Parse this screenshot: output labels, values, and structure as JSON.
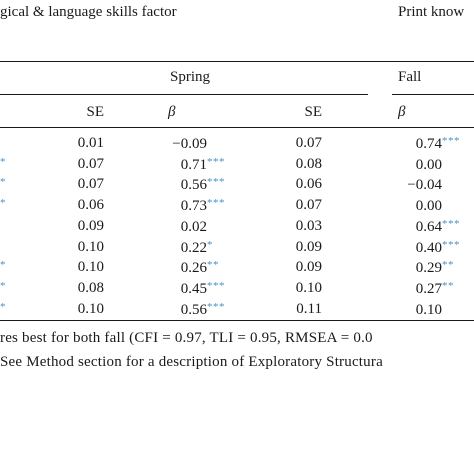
{
  "header": {
    "left_title": "gical & language skills factor",
    "right_title": "Print know"
  },
  "groups": {
    "spring": "Spring",
    "fall": "Fall"
  },
  "columns": {
    "se1": "SE",
    "beta_spring": "β",
    "se2": "SE",
    "beta_fall": "β"
  },
  "rows": [
    {
      "star0": "",
      "se1": "0.01",
      "spring_beta": "−0.09",
      "spring_star": "",
      "se2": "0.07",
      "fall_beta": "0.74",
      "fall_star": "***"
    },
    {
      "star0": "*",
      "se1": "0.07",
      "spring_beta": "0.71",
      "spring_star": "***",
      "se2": "0.08",
      "fall_beta": "0.00",
      "fall_star": ""
    },
    {
      "star0": "*",
      "se1": "0.07",
      "spring_beta": "0.56",
      "spring_star": "***",
      "se2": "0.06",
      "fall_beta": "−0.04",
      "fall_star": ""
    },
    {
      "star0": "*",
      "se1": "0.06",
      "spring_beta": "0.73",
      "spring_star": "***",
      "se2": "0.07",
      "fall_beta": "0.00",
      "fall_star": ""
    },
    {
      "star0": "",
      "se1": "0.09",
      "spring_beta": "0.02",
      "spring_star": "",
      "se2": "0.03",
      "fall_beta": "0.64",
      "fall_star": "***"
    },
    {
      "star0": "",
      "se1": "0.10",
      "spring_beta": "0.22",
      "spring_star": "*",
      "se2": "0.09",
      "fall_beta": "0.40",
      "fall_star": "***"
    },
    {
      "star0": "*",
      "se1": "0.10",
      "spring_beta": "0.26",
      "spring_star": "**",
      "se2": "0.09",
      "fall_beta": "0.29",
      "fall_star": "**"
    },
    {
      "star0": "*",
      "se1": "0.08",
      "spring_beta": "0.45",
      "spring_star": "***",
      "se2": "0.10",
      "fall_beta": "0.27",
      "fall_star": "**"
    },
    {
      "star0": "*",
      "se1": "0.10",
      "spring_beta": "0.56",
      "spring_star": "***",
      "se2": "0.11",
      "fall_beta": "0.10",
      "fall_star": ""
    }
  ],
  "footnote": {
    "line1": "res best for both fall (CFI = 0.97, TLI = 0.95, RMSEA = 0.0",
    "line2": "See Method section for a description of Exploratory Structura"
  },
  "colors": {
    "text": "#1a1a1a",
    "star": "#4a90c2"
  }
}
